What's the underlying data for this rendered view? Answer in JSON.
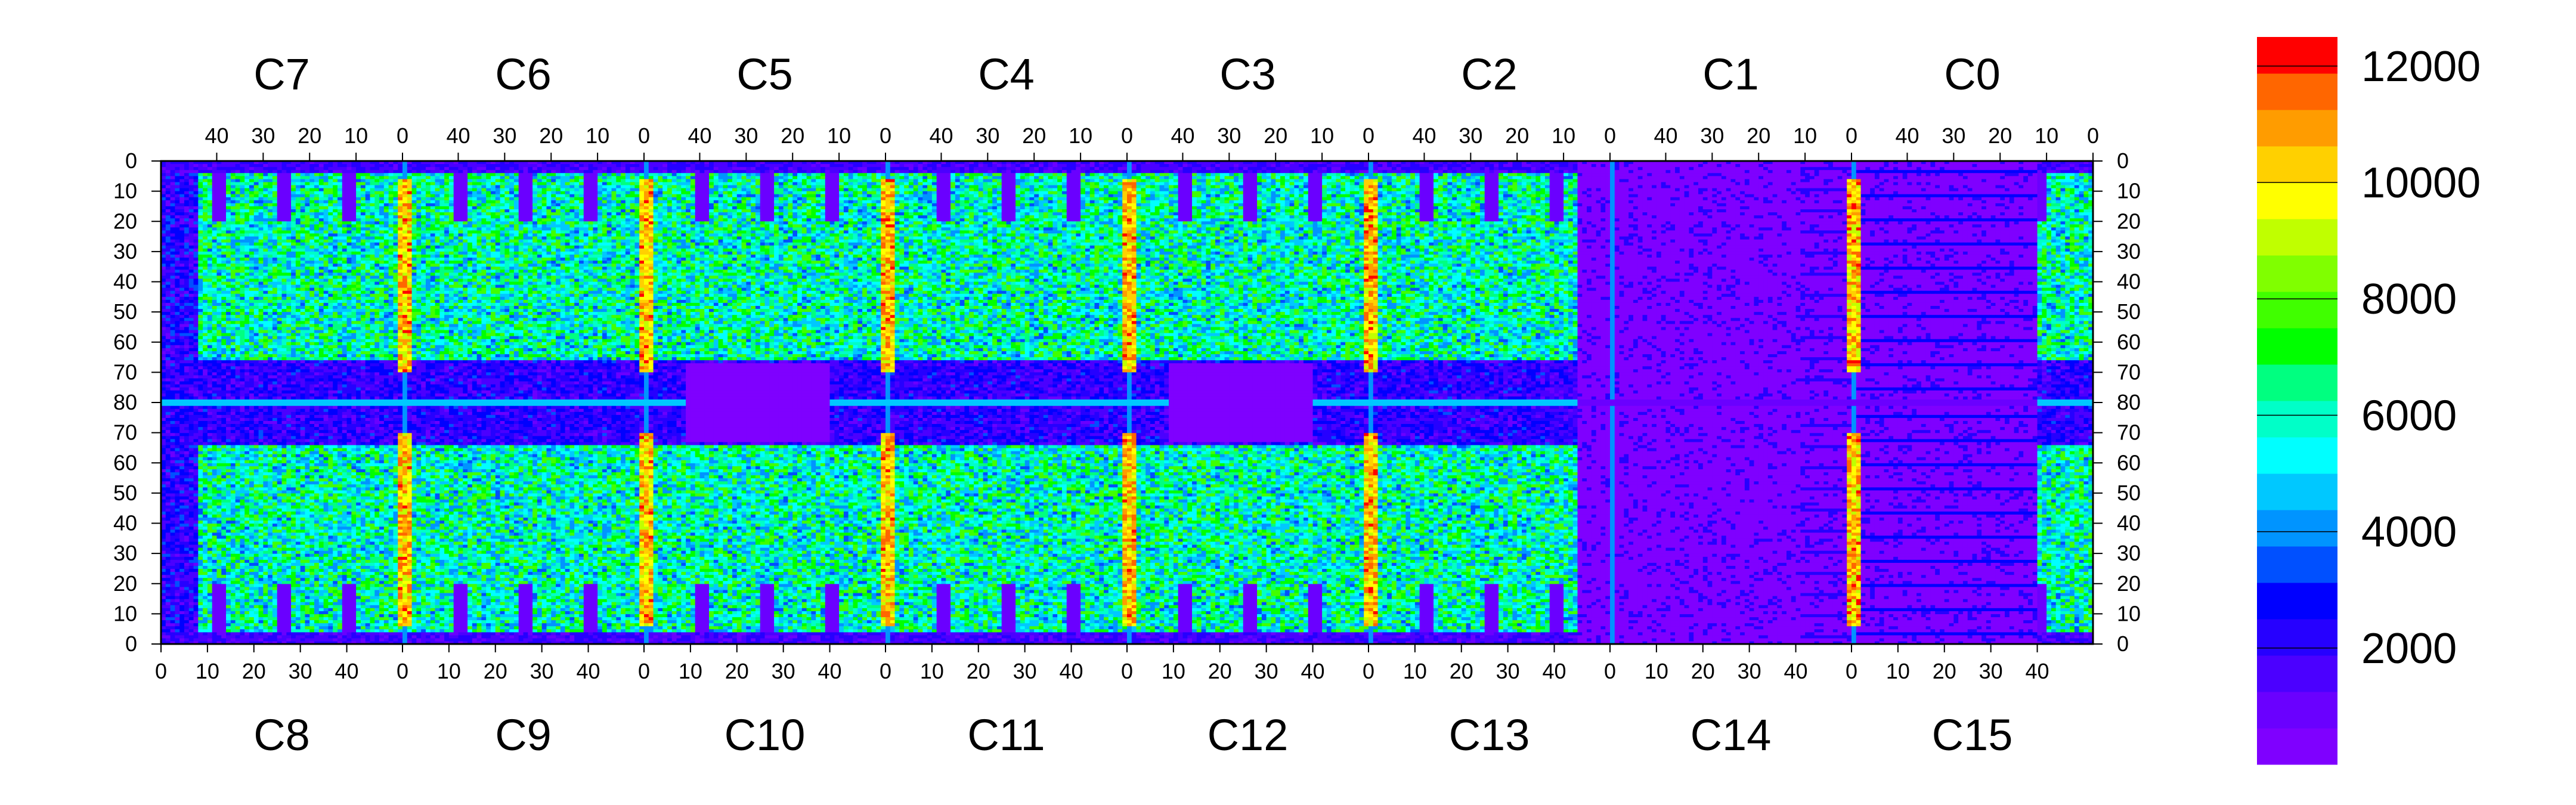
{
  "chart_data": {
    "type": "heatmap",
    "title": "",
    "xlabel": "",
    "ylabel": "",
    "top_chip_labels": [
      "C7",
      "C6",
      "C5",
      "C4",
      "C3",
      "C2",
      "C1",
      "C0"
    ],
    "bottom_chip_labels": [
      "C8",
      "C9",
      "C10",
      "C11",
      "C12",
      "C13",
      "C14",
      "C15"
    ],
    "top_x_ticks": [
      "40",
      "30",
      "20",
      "10",
      "0"
    ],
    "bottom_x_ticks": [
      "0",
      "10",
      "20",
      "30",
      "40"
    ],
    "y_ticks_top_half": [
      "0",
      "10",
      "20",
      "30",
      "40",
      "50",
      "60",
      "70",
      "80"
    ],
    "y_ticks_bottom_half": [
      "70",
      "60",
      "50",
      "40",
      "30",
      "20",
      "10",
      "0"
    ],
    "columns_per_chip": 52,
    "rows_per_half": 80,
    "z_range": [
      0,
      12500
    ],
    "colorbar_ticks": [
      "2000",
      "4000",
      "6000",
      "8000",
      "10000",
      "12000"
    ],
    "colorbar_tick_values": [
      2000,
      4000,
      6000,
      8000,
      10000,
      12000
    ],
    "colorbar_colors": [
      "#7f00ff",
      "#6a00ff",
      "#4b00ff",
      "#2600ff",
      "#0000ff",
      "#0050ff",
      "#0094ff",
      "#00c8ff",
      "#00ffff",
      "#00ffc8",
      "#00ff80",
      "#00ff00",
      "#40ff00",
      "#80ff00",
      "#c0ff00",
      "#ffff00",
      "#ffd000",
      "#ff9c00",
      "#ff6600",
      "#ff0000"
    ],
    "region_summary": {
      "background_level": 1000,
      "active_pixel_level": 6500,
      "hot_column_level": 10500,
      "dead_region_level": 500,
      "hot_columns_at_chip_boundaries": [
        "C7/C6",
        "C6/C5",
        "C5/C4",
        "C4/C3",
        "C3/C2",
        "C1/C0"
      ],
      "low_occupancy_chips": [
        "C13",
        "C14",
        "C15"
      ]
    }
  }
}
